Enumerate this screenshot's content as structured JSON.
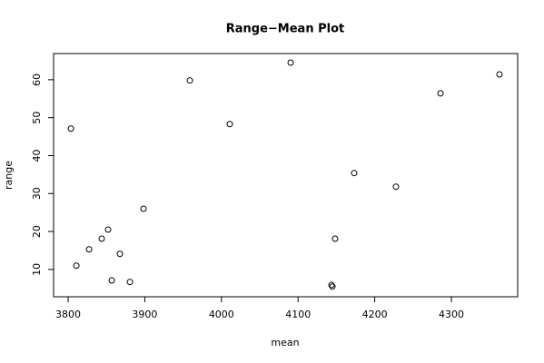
{
  "chart_data": {
    "type": "scatter",
    "title": "Range−Mean Plot",
    "x_label": "mean",
    "y_label": "range",
    "x": [
      3803.6,
      3810.7,
      3827.3,
      3843.8,
      3852.1,
      3856.9,
      3867.5,
      3880.6,
      3898.3,
      3958.8,
      4010.9,
      4090.3,
      4143.6,
      4144.8,
      4148.3,
      4173.2,
      4227.7,
      4285.8,
      4362.8
    ],
    "values": [
      47.1,
      11.0,
      15.3,
      18.1,
      20.5,
      7.1,
      14.1,
      6.7,
      26.0,
      59.8,
      48.3,
      64.5,
      5.9,
      5.5,
      18.1,
      35.4,
      31.8,
      56.4,
      61.4
    ],
    "color": "#000000",
    "xlim": [
      3781,
      4386.5
    ],
    "ylim": [
      2.8,
      66.9
    ],
    "xticks": [
      3800,
      3900,
      4000,
      4100,
      4200,
      4300
    ],
    "yticks": [
      10,
      20,
      30,
      40,
      50,
      60
    ]
  }
}
